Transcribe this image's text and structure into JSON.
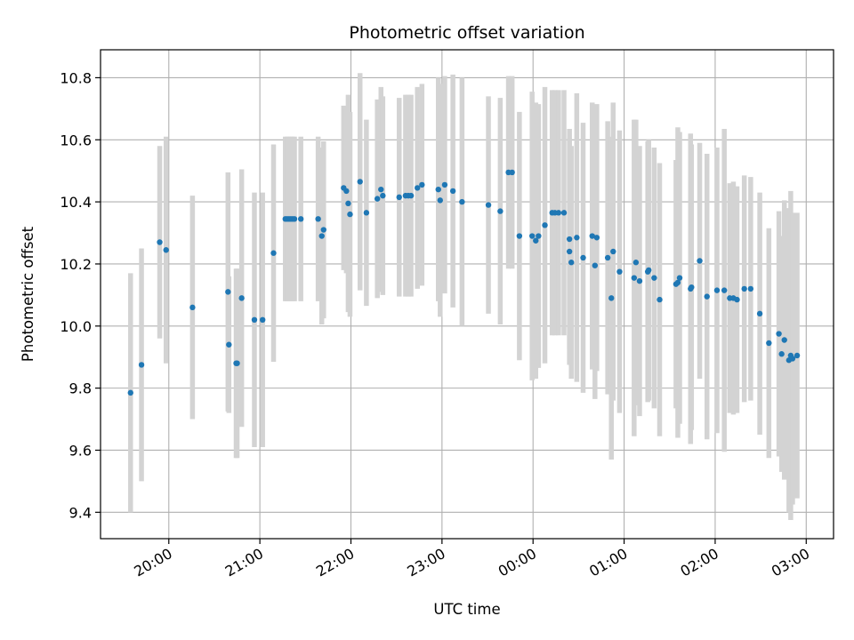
{
  "chart_data": {
    "type": "scatter",
    "title": "Photometric offset variation",
    "xlabel": "UTC time",
    "ylabel": "Photometric offset",
    "x_unit": "hours (UTC, values past 24 are the next day)",
    "xlim": [
      19.25,
      27.3
    ],
    "ylim": [
      9.315,
      10.89
    ],
    "grid": true,
    "x_ticks": [
      20,
      21,
      22,
      23,
      24,
      25,
      26,
      27
    ],
    "x_tick_labels": [
      "20:00",
      "21:00",
      "22:00",
      "23:00",
      "00:00",
      "01:00",
      "02:00",
      "03:00"
    ],
    "y_ticks": [
      9.4,
      9.6,
      9.8,
      10.0,
      10.2,
      10.4,
      10.6,
      10.8
    ],
    "y_tick_labels": [
      "9.4",
      "9.6",
      "9.8",
      "10.0",
      "10.2",
      "10.4",
      "10.6",
      "10.8"
    ],
    "colors": {
      "points": "#1f77b4",
      "error_bars": "#d3d3d3",
      "grid": "#b0b0b0"
    },
    "series": [
      {
        "x": [
          19.58,
          19.7,
          19.9,
          19.97,
          20.26,
          20.65,
          20.66,
          20.74,
          20.75,
          20.8,
          20.94,
          21.03,
          21.15,
          21.28,
          21.3,
          21.32,
          21.34,
          21.36,
          21.38,
          21.45,
          21.64,
          21.68,
          21.7,
          21.92,
          21.95,
          21.97,
          21.99,
          22.1,
          22.17,
          22.29,
          22.33,
          22.35,
          22.53,
          22.6,
          22.63,
          22.66,
          22.73,
          22.78,
          22.96,
          22.98,
          23.03,
          23.12,
          23.22,
          23.51,
          23.64,
          23.73,
          23.77,
          23.85,
          23.99,
          24.03,
          24.06,
          24.13,
          24.21,
          24.24,
          24.28,
          24.34,
          24.4,
          24.4,
          24.42,
          24.48,
          24.55,
          24.65,
          24.68,
          24.7,
          24.82,
          24.86,
          24.88,
          24.95,
          25.11,
          25.13,
          25.17,
          25.26,
          25.27,
          25.33,
          25.39,
          25.57,
          25.59,
          25.61,
          25.73,
          25.74,
          25.83,
          25.91,
          26.02,
          26.1,
          26.16,
          26.2,
          26.24,
          26.32,
          26.39,
          26.49,
          26.59,
          26.7,
          26.73,
          26.76,
          26.81,
          26.83,
          26.85,
          26.9
        ],
        "y": [
          9.785,
          9.875,
          10.27,
          10.245,
          10.06,
          10.11,
          9.94,
          9.88,
          9.88,
          10.09,
          10.02,
          10.02,
          10.235,
          10.345,
          10.345,
          10.345,
          10.345,
          10.345,
          10.345,
          10.345,
          10.345,
          10.29,
          10.31,
          10.445,
          10.435,
          10.395,
          10.36,
          10.465,
          10.365,
          10.41,
          10.44,
          10.42,
          10.415,
          10.42,
          10.42,
          10.42,
          10.445,
          10.455,
          10.44,
          10.405,
          10.455,
          10.435,
          10.4,
          10.39,
          10.37,
          10.495,
          10.495,
          10.29,
          10.29,
          10.275,
          10.29,
          10.325,
          10.365,
          10.365,
          10.365,
          10.365,
          10.28,
          10.24,
          10.205,
          10.285,
          10.22,
          10.29,
          10.195,
          10.285,
          10.22,
          10.09,
          10.24,
          10.175,
          10.155,
          10.205,
          10.145,
          10.175,
          10.18,
          10.155,
          10.085,
          10.135,
          10.14,
          10.155,
          10.12,
          10.125,
          10.21,
          10.095,
          10.115,
          10.115,
          10.09,
          10.09,
          10.085,
          10.12,
          10.12,
          10.04,
          9.945,
          9.975,
          9.91,
          9.955,
          9.89,
          9.905,
          9.895,
          9.905
        ],
        "yerr": [
          0.385,
          0.375,
          0.31,
          0.365,
          0.36,
          0.385,
          0.22,
          0.305,
          0.305,
          0.415,
          0.41,
          0.41,
          0.35,
          0.265,
          0.265,
          0.265,
          0.265,
          0.265,
          0.265,
          0.265,
          0.265,
          0.285,
          0.285,
          0.265,
          0.265,
          0.35,
          0.33,
          0.35,
          0.3,
          0.32,
          0.33,
          0.32,
          0.32,
          0.325,
          0.325,
          0.325,
          0.325,
          0.325,
          0.36,
          0.375,
          0.35,
          0.375,
          0.4,
          0.35,
          0.365,
          0.31,
          0.31,
          0.4,
          0.465,
          0.445,
          0.425,
          0.445,
          0.395,
          0.395,
          0.395,
          0.395,
          0.355,
          0.365,
          0.375,
          0.465,
          0.435,
          0.43,
          0.43,
          0.43,
          0.44,
          0.52,
          0.48,
          0.455,
          0.51,
          0.46,
          0.435,
          0.42,
          0.42,
          0.42,
          0.44,
          0.4,
          0.5,
          0.47,
          0.5,
          0.46,
          0.38,
          0.46,
          0.46,
          0.52,
          0.37,
          0.375,
          0.365,
          0.365,
          0.36,
          0.39,
          0.37,
          0.395,
          0.38,
          0.45,
          0.49,
          0.53,
          0.47,
          0.46
        ]
      }
    ]
  }
}
